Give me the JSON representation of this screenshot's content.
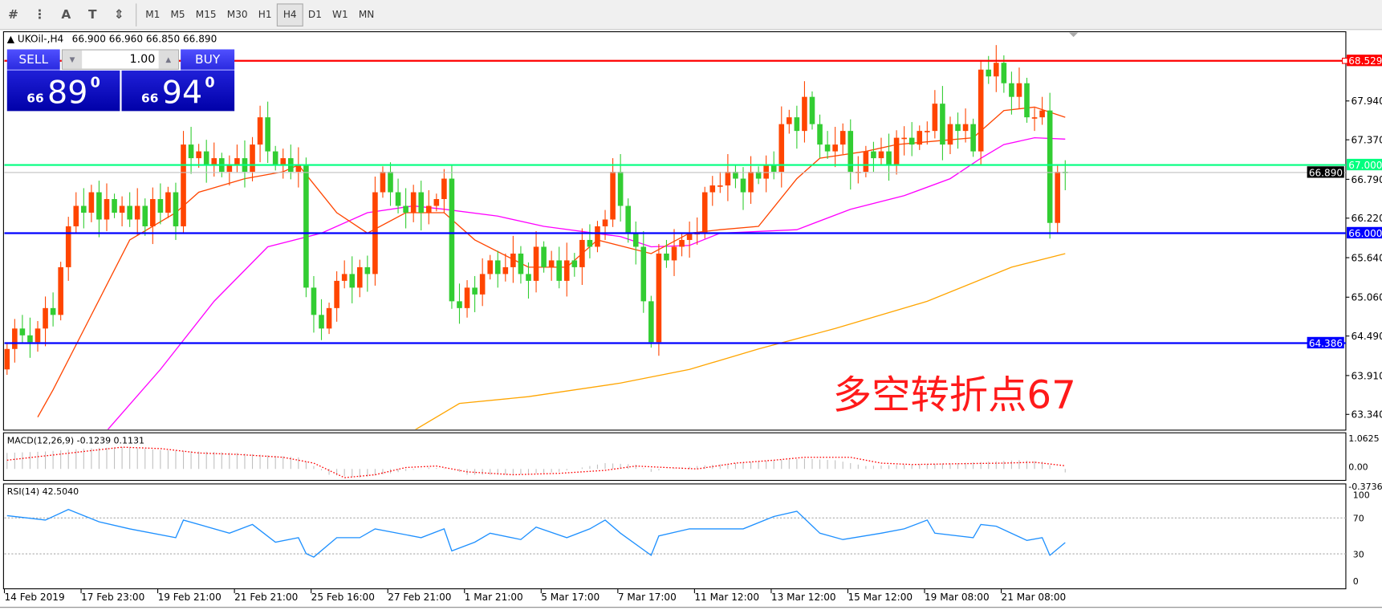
{
  "toolbar": {
    "icons": [
      "elliott-wave-icon",
      "fibonacci-icon",
      "text-icon",
      "text-label-icon",
      "arrows-icon"
    ],
    "icon_glyphs": [
      "#",
      "⋮",
      "A",
      "T",
      "⇕"
    ],
    "timeframes": [
      "M1",
      "M5",
      "M15",
      "M30",
      "H1",
      "H4",
      "D1",
      "W1",
      "MN"
    ],
    "selected": "H4"
  },
  "symbol": {
    "header": "UKOil-,H4",
    "ohlc": "66.900 66.960 66.850 66.890"
  },
  "trade": {
    "sell_label": "SELL",
    "buy_label": "BUY",
    "lot": "1.00",
    "sell_price": {
      "prefix": "66",
      "main": "89",
      "sup": "0"
    },
    "buy_price": {
      "prefix": "66",
      "main": "94",
      "sup": "0"
    }
  },
  "annotation": "多空转折点67",
  "colors": {
    "bull": "#ff4500",
    "bear": "#32cd32",
    "ma_fast": "#ff4500",
    "ma_mid": "#ff00ff",
    "ma_slow": "#ffa500",
    "rsi": "#1e90ff",
    "macd_hist": "#c0c0c0",
    "macd_signal": "#ff0000"
  },
  "chart_data": {
    "type": "candlestick",
    "price_ticks": [
      "67.940",
      "67.370",
      "66.790",
      "66.220",
      "65.640",
      "65.060",
      "64.490",
      "63.910",
      "63.340"
    ],
    "price_range": [
      63.2,
      68.9
    ],
    "time_labels": [
      "14 Feb 2019",
      "17 Feb 23:00",
      "19 Feb 21:00",
      "21 Feb 21:00",
      "25 Feb 16:00",
      "27 Feb 21:00",
      "1 Mar 21:00",
      "5 Mar 17:00",
      "7 Mar 17:00",
      "11 Mar 12:00",
      "13 Mar 12:00",
      "15 Mar 12:00",
      "19 Mar 08:00",
      "21 Mar 08:00"
    ],
    "closes": [
      64.3,
      64.6,
      64.5,
      64.4,
      64.6,
      64.9,
      64.8,
      65.5,
      66.1,
      66.4,
      66.3,
      66.6,
      66.2,
      66.5,
      66.3,
      66.4,
      66.2,
      66.4,
      66.1,
      66.5,
      66.3,
      66.6,
      66.1,
      67.3,
      67.1,
      67.2,
      67.0,
      67.1,
      66.9,
      67.0,
      67.1,
      66.9,
      67.3,
      67.7,
      67.2,
      67.0,
      67.1,
      66.9,
      67.0,
      65.2,
      64.8,
      64.6,
      64.9,
      65.3,
      65.4,
      65.2,
      65.5,
      65.4,
      66.6,
      66.9,
      66.6,
      66.4,
      66.3,
      66.6,
      66.3,
      66.4,
      66.5,
      66.8,
      65.0,
      64.9,
      65.2,
      65.1,
      65.4,
      65.6,
      65.4,
      65.5,
      65.7,
      65.4,
      65.3,
      65.8,
      65.5,
      65.6,
      65.3,
      65.6,
      65.5,
      65.9,
      65.8,
      66.1,
      66.2,
      66.9,
      66.4,
      66.0,
      65.8,
      65.0,
      64.4,
      65.7,
      65.6,
      65.8,
      65.9,
      66.0,
      66.0,
      66.6,
      66.7,
      66.7,
      66.9,
      66.8,
      66.6,
      66.9,
      66.8,
      67.0,
      66.9,
      67.6,
      67.7,
      67.5,
      68.0,
      67.6,
      67.3,
      67.2,
      67.3,
      67.5,
      66.9,
      66.9,
      67.2,
      67.1,
      67.2,
      67.0,
      67.4,
      67.4,
      67.3,
      67.5,
      67.5,
      67.9,
      67.3,
      67.6,
      67.5,
      67.6,
      67.2,
      68.4,
      68.3,
      68.5,
      68.2,
      68.0,
      68.2,
      67.7,
      67.7,
      67.8,
      66.15,
      66.9,
      66.89
    ],
    "first_open": 64.0,
    "ma_fast": [
      [
        4,
        63.3
      ],
      [
        6,
        63.7
      ],
      [
        11,
        64.8
      ],
      [
        16,
        65.9
      ],
      [
        22,
        66.3
      ],
      [
        25,
        66.6
      ],
      [
        31,
        66.8
      ],
      [
        36,
        66.9
      ],
      [
        38,
        67.0
      ],
      [
        43,
        66.3
      ],
      [
        47,
        66.0
      ],
      [
        52,
        66.3
      ],
      [
        57,
        66.3
      ],
      [
        61,
        65.9
      ],
      [
        68,
        65.5
      ],
      [
        73,
        65.5
      ],
      [
        77,
        65.9
      ],
      [
        84,
        65.7
      ],
      [
        89,
        66.0
      ],
      [
        93,
        66.05
      ],
      [
        98,
        66.1
      ],
      [
        103,
        66.8
      ],
      [
        106,
        67.1
      ],
      [
        112,
        67.2
      ],
      [
        116,
        67.3
      ],
      [
        121,
        67.35
      ],
      [
        126,
        67.4
      ],
      [
        130,
        67.8
      ],
      [
        134,
        67.85
      ],
      [
        138,
        67.7
      ]
    ],
    "ma_mid": [
      [
        13,
        63.1
      ],
      [
        20,
        64.0
      ],
      [
        27,
        65.0
      ],
      [
        34,
        65.8
      ],
      [
        41,
        66.0
      ],
      [
        47,
        66.3
      ],
      [
        53,
        66.4
      ],
      [
        57,
        66.35
      ],
      [
        64,
        66.25
      ],
      [
        70,
        66.1
      ],
      [
        80,
        65.95
      ],
      [
        84,
        65.8
      ],
      [
        89,
        65.82
      ],
      [
        93,
        66.0
      ],
      [
        103,
        66.05
      ],
      [
        110,
        66.35
      ],
      [
        117,
        66.55
      ],
      [
        123,
        66.8
      ],
      [
        127,
        67.1
      ],
      [
        130,
        67.3
      ],
      [
        134,
        67.4
      ],
      [
        138,
        67.38
      ]
    ],
    "ma_slow": [
      [
        53,
        63.1
      ],
      [
        59,
        63.5
      ],
      [
        68,
        63.6
      ],
      [
        80,
        63.8
      ],
      [
        89,
        64.0
      ],
      [
        98,
        64.3
      ],
      [
        108,
        64.6
      ],
      [
        120,
        65.0
      ],
      [
        131,
        65.5
      ],
      [
        138,
        65.7
      ]
    ],
    "levels": [
      {
        "price": 68.529,
        "label": "68.529",
        "color": "#ff0000"
      },
      {
        "price": 67.0,
        "label": "67.000",
        "color": "#00ff7f"
      },
      {
        "price": 66.89,
        "label": "66.890",
        "color": "#000000",
        "current": true
      },
      {
        "price": 66.0,
        "label": "66.000",
        "color": "#0000ff"
      },
      {
        "price": 64.386,
        "label": "64.386",
        "color": "#0000ff"
      }
    ],
    "macd": {
      "label": "MACD(12,26,9) -0.1239 0.1131",
      "ticks": [
        "1.0625",
        "0.00",
        "-0.3736"
      ],
      "range": [
        -0.3736,
        1.0625
      ],
      "hist": [
        [
          0,
          0.55
        ],
        [
          5,
          0.6
        ],
        [
          10,
          0.7
        ],
        [
          15,
          0.75
        ],
        [
          20,
          0.65
        ],
        [
          25,
          0.6
        ],
        [
          30,
          0.55
        ],
        [
          35,
          0.45
        ],
        [
          38,
          0.4
        ],
        [
          40,
          0.1
        ],
        [
          42,
          -0.2
        ],
        [
          46,
          -0.3
        ],
        [
          50,
          -0.15
        ],
        [
          55,
          0.05
        ],
        [
          58,
          0
        ],
        [
          60,
          -0.2
        ],
        [
          66,
          -0.2
        ],
        [
          72,
          -0.1
        ],
        [
          78,
          0.2
        ],
        [
          82,
          0.15
        ],
        [
          84,
          -0.1
        ],
        [
          86,
          0
        ],
        [
          90,
          0.1
        ],
        [
          95,
          0.2
        ],
        [
          100,
          0.3
        ],
        [
          104,
          0.35
        ],
        [
          108,
          0.3
        ],
        [
          112,
          0.1
        ],
        [
          118,
          0.15
        ],
        [
          124,
          0.2
        ],
        [
          128,
          0.25
        ],
        [
          132,
          0.3
        ],
        [
          135,
          0.25
        ],
        [
          137,
          0
        ],
        [
          138,
          -0.12
        ]
      ],
      "signal": [
        [
          0,
          0.3
        ],
        [
          10,
          0.6
        ],
        [
          15,
          0.75
        ],
        [
          20,
          0.7
        ],
        [
          25,
          0.55
        ],
        [
          30,
          0.5
        ],
        [
          36,
          0.4
        ],
        [
          40,
          0.2
        ],
        [
          44,
          -0.3
        ],
        [
          48,
          -0.2
        ],
        [
          52,
          0.05
        ],
        [
          56,
          0.1
        ],
        [
          60,
          -0.1
        ],
        [
          66,
          -0.2
        ],
        [
          72,
          -0.15
        ],
        [
          78,
          -0.05
        ],
        [
          82,
          0.1
        ],
        [
          86,
          0.05
        ],
        [
          90,
          0.0
        ],
        [
          95,
          0.2
        ],
        [
          100,
          0.3
        ],
        [
          104,
          0.4
        ],
        [
          110,
          0.4
        ],
        [
          114,
          0.2
        ],
        [
          118,
          0.15
        ],
        [
          124,
          0.18
        ],
        [
          130,
          0.2
        ],
        [
          134,
          0.23
        ],
        [
          138,
          0.11
        ]
      ]
    },
    "rsi": {
      "label": "RSI(14) 42.5040",
      "ticks": [
        "100",
        "70",
        "30",
        "0"
      ],
      "levels": [
        70,
        30
      ],
      "values": [
        [
          0,
          72.5
        ],
        [
          5,
          67.6
        ],
        [
          8,
          79.4
        ],
        [
          12,
          65.7
        ],
        [
          16,
          57.8
        ],
        [
          22,
          48
        ],
        [
          23,
          67.6
        ],
        [
          29,
          53
        ],
        [
          32,
          62.7
        ],
        [
          35,
          43
        ],
        [
          38,
          48
        ],
        [
          39,
          30.4
        ],
        [
          40,
          26.5
        ],
        [
          43,
          48
        ],
        [
          46,
          48
        ],
        [
          48,
          57.8
        ],
        [
          54,
          48
        ],
        [
          57,
          57.8
        ],
        [
          58,
          33.3
        ],
        [
          61,
          43
        ],
        [
          63,
          53
        ],
        [
          67,
          46
        ],
        [
          69,
          59.8
        ],
        [
          73,
          48
        ],
        [
          76,
          57.8
        ],
        [
          78,
          67.6
        ],
        [
          80,
          53
        ],
        [
          84,
          28.4
        ],
        [
          85,
          50
        ],
        [
          89,
          57.8
        ],
        [
          96,
          57.8
        ],
        [
          100,
          71.6
        ],
        [
          103,
          77.5
        ],
        [
          106,
          53
        ],
        [
          109,
          46
        ],
        [
          114,
          53
        ],
        [
          117,
          57.8
        ],
        [
          120,
          67.6
        ],
        [
          121,
          53
        ],
        [
          126,
          48
        ],
        [
          127,
          62.7
        ],
        [
          129,
          60.8
        ],
        [
          133,
          45
        ],
        [
          135,
          48
        ],
        [
          136,
          28.4
        ],
        [
          138,
          42.5
        ]
      ]
    }
  }
}
